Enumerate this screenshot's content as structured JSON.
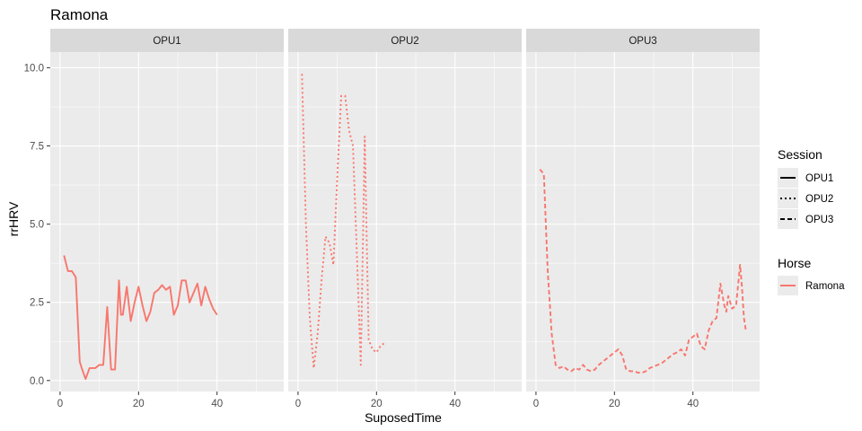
{
  "chart_data": {
    "type": "line",
    "title": "Ramona",
    "xlabel": "SuposedTime",
    "ylabel": "rrHRV",
    "xlim": [
      -2.5,
      57
    ],
    "ylim": [
      -0.35,
      10.5
    ],
    "x_ticks": [
      0,
      20,
      40
    ],
    "x_minor_ticks": [
      10,
      30,
      50
    ],
    "y_ticks": [
      0.0,
      2.5,
      5.0,
      7.5,
      10.0
    ],
    "y_tick_labels": [
      "0.0",
      "2.5",
      "5.0",
      "7.5",
      "10.0"
    ],
    "y_minor_ticks": [
      1.25,
      3.75,
      6.25,
      8.75
    ],
    "grid": true,
    "line_color": "#F8766D",
    "panel_background": "#EBEBEB",
    "strip_background": "#D9D9D9",
    "legends": [
      {
        "title": "Session",
        "entries": [
          {
            "label": "OPU1",
            "linetype": "solid"
          },
          {
            "label": "OPU2",
            "linetype": "dotted"
          },
          {
            "label": "OPU3",
            "linetype": "dashed"
          }
        ]
      },
      {
        "title": "Horse",
        "entries": [
          {
            "label": "Ramona",
            "color": "#F8766D"
          }
        ]
      }
    ],
    "panels": [
      {
        "strip": "OPU1",
        "series": [
          {
            "name": "Ramona",
            "session": "OPU1",
            "linetype": "solid",
            "x": [
              1,
              2,
              3,
              4,
              5,
              5.5,
              6.5,
              7.5,
              9,
              10,
              11,
              12,
              13,
              14,
              15,
              15.5,
              16,
              17,
              18,
              19,
              20,
              21,
              22,
              23,
              24,
              25,
              26,
              27,
              28,
              29,
              30,
              31,
              32,
              33,
              34,
              35,
              36,
              37,
              38,
              39,
              40
            ],
            "y": [
              4.0,
              3.5,
              3.5,
              3.3,
              0.6,
              0.4,
              0.05,
              0.4,
              0.4,
              0.5,
              0.5,
              2.35,
              0.35,
              0.35,
              3.2,
              2.1,
              2.1,
              3.0,
              1.9,
              2.5,
              3.0,
              2.4,
              1.9,
              2.2,
              2.8,
              2.9,
              3.05,
              2.9,
              3.0,
              2.1,
              2.4,
              3.2,
              3.2,
              2.5,
              2.8,
              3.1,
              2.4,
              3.0,
              2.6,
              2.3,
              2.1
            ]
          }
        ]
      },
      {
        "strip": "OPU2",
        "series": [
          {
            "name": "Ramona",
            "session": "OPU2",
            "linetype": "dotted",
            "x": [
              1,
              2,
              3,
              4,
              5,
              6,
              7,
              8,
              9,
              10,
              11,
              12,
              13,
              14,
              15,
              16,
              17,
              18,
              19,
              20,
              21,
              22
            ],
            "y": [
              9.8,
              5.0,
              2.0,
              0.4,
              1.5,
              3.2,
              4.6,
              4.4,
              3.7,
              6.5,
              9.1,
              9.1,
              8.0,
              7.5,
              4.0,
              0.5,
              7.8,
              1.3,
              1.0,
              0.9,
              1.1,
              1.2
            ]
          }
        ]
      },
      {
        "strip": "OPU3",
        "series": [
          {
            "name": "Ramona",
            "session": "OPU3",
            "linetype": "dashed",
            "x": [
              1,
              2,
              3,
              4,
              5,
              6,
              7,
              8,
              9,
              10,
              11,
              12,
              13,
              14,
              15,
              16,
              17,
              18,
              19,
              20,
              21,
              22,
              23,
              24,
              25,
              26,
              27,
              28,
              29,
              30,
              31,
              32,
              33,
              34,
              35,
              36,
              37,
              38,
              39,
              40,
              41,
              42,
              43,
              44,
              45,
              46,
              47,
              48,
              48.5,
              49,
              50,
              51,
              52,
              52.5,
              53,
              53.5
            ],
            "y": [
              6.75,
              6.6,
              3.5,
              1.5,
              0.5,
              0.4,
              0.45,
              0.35,
              0.3,
              0.4,
              0.35,
              0.5,
              0.35,
              0.3,
              0.35,
              0.5,
              0.6,
              0.7,
              0.8,
              0.9,
              1.0,
              0.8,
              0.35,
              0.3,
              0.3,
              0.25,
              0.25,
              0.3,
              0.4,
              0.45,
              0.5,
              0.55,
              0.65,
              0.75,
              0.85,
              0.9,
              1.0,
              0.8,
              1.3,
              1.4,
              1.5,
              1.1,
              1.0,
              1.6,
              1.9,
              2.0,
              3.1,
              2.4,
              2.2,
              2.7,
              2.3,
              2.4,
              3.7,
              3.0,
              2.0,
              1.6
            ]
          }
        ]
      }
    ]
  }
}
